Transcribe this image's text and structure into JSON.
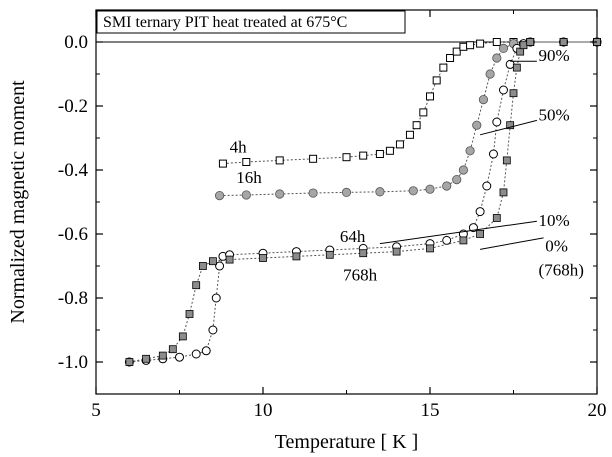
{
  "chart_data": {
    "type": "scatter",
    "title": "SMI ternary PIT heat treated at 675°C",
    "xlabel": "Temperature [ K ]",
    "ylabel": "Normalized magnetic moment",
    "xlim": [
      5,
      20
    ],
    "ylim": [
      -1.1,
      0.1
    ],
    "xticks": [
      5,
      10,
      15,
      20
    ],
    "xtick_labels": [
      "5",
      "10",
      "15",
      "20"
    ],
    "yticks": [
      0.0,
      -0.2,
      -0.4,
      -0.6,
      -0.8,
      -1.0
    ],
    "ytick_labels": [
      "0.0",
      "-0.2",
      "-0.4",
      "-0.6",
      "-0.8",
      "-1.0"
    ],
    "grid": false,
    "series": [
      {
        "name": "4h",
        "marker": "open-square",
        "color": "#000000",
        "x": [
          8.8,
          9.5,
          10.5,
          11.5,
          12.5,
          13.0,
          13.5,
          13.8,
          14.1,
          14.4,
          14.6,
          14.8,
          15.0,
          15.2,
          15.4,
          15.6,
          15.8,
          16.0,
          16.2,
          16.5,
          17.0,
          17.5,
          18.0,
          19.0,
          20.0
        ],
        "y": [
          -0.38,
          -0.375,
          -0.37,
          -0.365,
          -0.36,
          -0.355,
          -0.35,
          -0.34,
          -0.32,
          -0.29,
          -0.26,
          -0.22,
          -0.17,
          -0.12,
          -0.08,
          -0.05,
          -0.03,
          -0.015,
          -0.01,
          -0.005,
          0.0,
          0.0,
          0.0,
          0.0,
          0.0
        ]
      },
      {
        "name": "16h",
        "marker": "filled-circle",
        "color": "#a6a6a6",
        "x": [
          8.7,
          9.5,
          10.5,
          11.5,
          12.5,
          13.5,
          14.5,
          15.0,
          15.5,
          15.8,
          16.0,
          16.2,
          16.4,
          16.6,
          16.8,
          17.0,
          17.2,
          17.5,
          18.0,
          19.0,
          20.0
        ],
        "y": [
          -0.48,
          -0.478,
          -0.475,
          -0.472,
          -0.47,
          -0.468,
          -0.465,
          -0.46,
          -0.45,
          -0.43,
          -0.4,
          -0.34,
          -0.26,
          -0.18,
          -0.1,
          -0.05,
          -0.02,
          -0.005,
          0.0,
          0.0,
          0.0
        ]
      },
      {
        "name": "64h",
        "marker": "open-circle",
        "color": "#000000",
        "x": [
          6.0,
          6.5,
          7.0,
          7.5,
          8.0,
          8.3,
          8.5,
          8.6,
          8.7,
          8.8,
          9.0,
          10.0,
          11.0,
          12.0,
          13.0,
          14.0,
          15.0,
          15.5,
          16.0,
          16.3,
          16.5,
          16.7,
          16.9,
          17.0,
          17.2,
          17.4,
          17.6,
          17.8,
          18.0,
          19.0,
          20.0
        ],
        "y": [
          -1.0,
          -0.995,
          -0.99,
          -0.985,
          -0.975,
          -0.965,
          -0.9,
          -0.8,
          -0.7,
          -0.67,
          -0.665,
          -0.66,
          -0.655,
          -0.65,
          -0.645,
          -0.64,
          -0.63,
          -0.62,
          -0.6,
          -0.58,
          -0.53,
          -0.45,
          -0.35,
          -0.25,
          -0.15,
          -0.07,
          -0.02,
          -0.005,
          0.0,
          0.0,
          0.0
        ]
      },
      {
        "name": "768h",
        "marker": "filled-square",
        "color": "#8c8c8c",
        "x": [
          6.0,
          6.5,
          7.0,
          7.3,
          7.6,
          7.8,
          8.0,
          8.2,
          8.5,
          9.0,
          10.0,
          11.0,
          12.0,
          13.0,
          14.0,
          15.0,
          16.0,
          16.5,
          17.0,
          17.2,
          17.3,
          17.4,
          17.5,
          17.6,
          17.7,
          17.8,
          18.0,
          19.0,
          20.0
        ],
        "y": [
          -1.0,
          -0.99,
          -0.98,
          -0.96,
          -0.92,
          -0.85,
          -0.76,
          -0.7,
          -0.685,
          -0.68,
          -0.675,
          -0.67,
          -0.665,
          -0.66,
          -0.655,
          -0.645,
          -0.62,
          -0.6,
          -0.55,
          -0.47,
          -0.37,
          -0.26,
          -0.16,
          -0.08,
          -0.03,
          -0.01,
          0.0,
          0.0,
          0.0
        ]
      }
    ],
    "annotations": [
      {
        "text": "4h",
        "x": 9.0,
        "y": -0.345
      },
      {
        "text": "16h",
        "x": 9.2,
        "y": -0.44
      },
      {
        "text": "64h",
        "x": 12.3,
        "y": -0.625
      },
      {
        "text": "768h",
        "x": 12.4,
        "y": -0.745
      },
      {
        "text": "90%",
        "x": 18.25,
        "y": -0.06
      },
      {
        "text": "50%",
        "x": 18.25,
        "y": -0.245
      },
      {
        "text": "10%",
        "x": 18.25,
        "y": -0.575
      },
      {
        "text": "0%",
        "x": 18.45,
        "y": -0.655
      },
      {
        "text": "(768h)",
        "x": 18.25,
        "y": -0.73
      }
    ]
  }
}
